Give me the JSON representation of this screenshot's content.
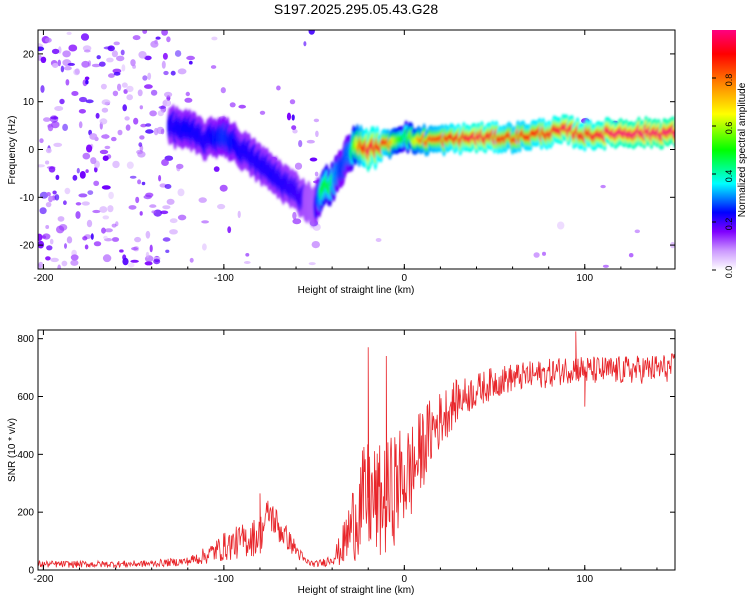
{
  "chart_data": [
    {
      "type": "heatmap",
      "title": "S197.2025.295.05.43.G28",
      "xlabel": "Height of straight line (km)",
      "ylabel": "Frequency (Hz)",
      "xlim": [
        -203,
        150
      ],
      "ylim": [
        -25,
        25
      ],
      "xticks": [
        -200,
        -100,
        0,
        100
      ],
      "yticks": [
        -20,
        -10,
        0,
        10,
        20
      ],
      "colorbar": {
        "label": "Normalized spectral amplitude",
        "range": [
          0,
          1
        ],
        "ticks": [
          0,
          0.2,
          0.4,
          0.6,
          0.8
        ],
        "colors": [
          "#ffffff",
          "#cc99ff",
          "#7f00ff",
          "#0000ff",
          "#00ffff",
          "#00ff00",
          "#ffff00",
          "#ff8000",
          "#ff0000",
          "#ff0080"
        ]
      },
      "ridge": {
        "description": "dominant frequency trace",
        "x": [
          -130,
          -120,
          -110,
          -100,
          -90,
          -80,
          -70,
          -60,
          -50,
          -45,
          -40,
          -35,
          -30,
          -25,
          -20,
          -10,
          0,
          5,
          10,
          20,
          40,
          60,
          80,
          90,
          100,
          120,
          150
        ],
        "y": [
          5,
          4,
          2,
          3,
          0,
          -3,
          -6,
          -9,
          -12,
          -8,
          -7,
          -4,
          0,
          1,
          0,
          1,
          3,
          2,
          2,
          2,
          2.5,
          2.5,
          3.5,
          4,
          3,
          3.5,
          3.5
        ],
        "amplitude": [
          0.3,
          0.32,
          0.3,
          0.35,
          0.3,
          0.3,
          0.3,
          0.28,
          0.25,
          0.5,
          0.45,
          0.35,
          0.4,
          0.7,
          0.85,
          0.75,
          0.45,
          0.6,
          0.7,
          0.75,
          0.85,
          0.75,
          0.8,
          0.85,
          0.8,
          0.88,
          0.9
        ]
      }
    },
    {
      "type": "line",
      "xlabel": "Height of straight line (km)",
      "ylabel": "SNR (10 * v/v)",
      "xlim": [
        -203,
        150
      ],
      "ylim": [
        0,
        830
      ],
      "xticks": [
        -200,
        -100,
        0,
        100
      ],
      "yticks": [
        0,
        200,
        400,
        600,
        800
      ],
      "series": [
        {
          "name": "SNR",
          "color": "#e8262b",
          "x": [
            -203,
            -180,
            -160,
            -140,
            -120,
            -110,
            -100,
            -90,
            -80,
            -75,
            -70,
            -65,
            -60,
            -55,
            -50,
            -45,
            -40,
            -35,
            -30,
            -25,
            -20,
            -15,
            -10,
            -5,
            0,
            5,
            10,
            15,
            20,
            25,
            30,
            40,
            50,
            60,
            80,
            95,
            100,
            120,
            150
          ],
          "values": [
            20,
            20,
            20,
            22,
            30,
            50,
            80,
            100,
            120,
            200,
            150,
            110,
            70,
            30,
            20,
            25,
            40,
            70,
            140,
            220,
            250,
            230,
            240,
            290,
            320,
            350,
            420,
            480,
            520,
            560,
            590,
            620,
            650,
            665,
            680,
            700,
            690,
            690,
            700
          ],
          "amplitude": [
            12,
            12,
            12,
            12,
            15,
            30,
            50,
            60,
            70,
            60,
            60,
            40,
            30,
            15,
            10,
            15,
            20,
            60,
            120,
            180,
            200,
            200,
            200,
            200,
            180,
            170,
            140,
            120,
            100,
            90,
            70,
            60,
            55,
            50,
            50,
            50,
            50,
            50,
            50
          ],
          "peaks": [
            [
              95,
              825
            ],
            [
              -20,
              770
            ],
            [
              -10,
              740
            ],
            [
              -80,
              265
            ],
            [
              100,
              565
            ]
          ]
        }
      ]
    }
  ]
}
